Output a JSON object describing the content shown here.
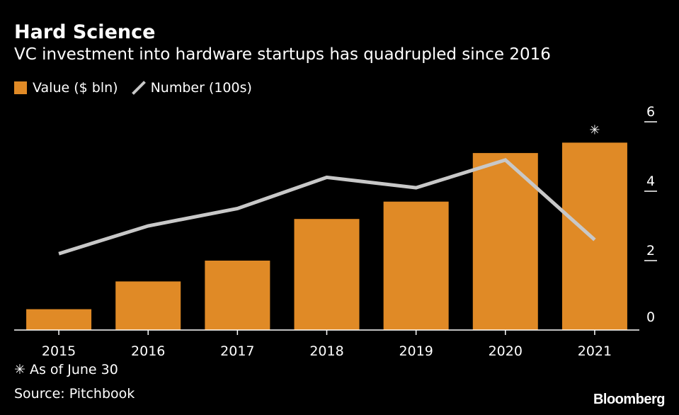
{
  "title": "Hard Science",
  "subtitle": "VC investment into hardware startups has quadrupled since 2016",
  "legend": {
    "bar_label": "Value ($ bln)",
    "line_label": "Number (100s)"
  },
  "footnote": "✳ As of June 30",
  "source": "Source: Pitchbook",
  "brand": "Bloomberg",
  "colors": {
    "bar": "#e08a26",
    "line": "#c8c8c8",
    "background": "#000000",
    "text": "#ffffff"
  },
  "chart_data": {
    "type": "bar",
    "categories": [
      "2015",
      "2016",
      "2017",
      "2018",
      "2019",
      "2020",
      "2021"
    ],
    "series": [
      {
        "name": "Value ($ bln)",
        "type": "bar",
        "values": [
          0.6,
          1.4,
          2.0,
          3.2,
          3.7,
          5.1,
          5.4
        ]
      },
      {
        "name": "Number (100s)",
        "type": "line",
        "values": [
          2.2,
          3.0,
          3.5,
          4.4,
          4.1,
          4.9,
          2.6
        ]
      }
    ],
    "annotations": [
      {
        "category": "2021",
        "text": "✳"
      }
    ],
    "y_axis": {
      "position": "right",
      "ticks": [
        0,
        2,
        4,
        6
      ],
      "ylim": [
        0,
        6
      ]
    },
    "grid": false,
    "legend_position": "top-left"
  }
}
